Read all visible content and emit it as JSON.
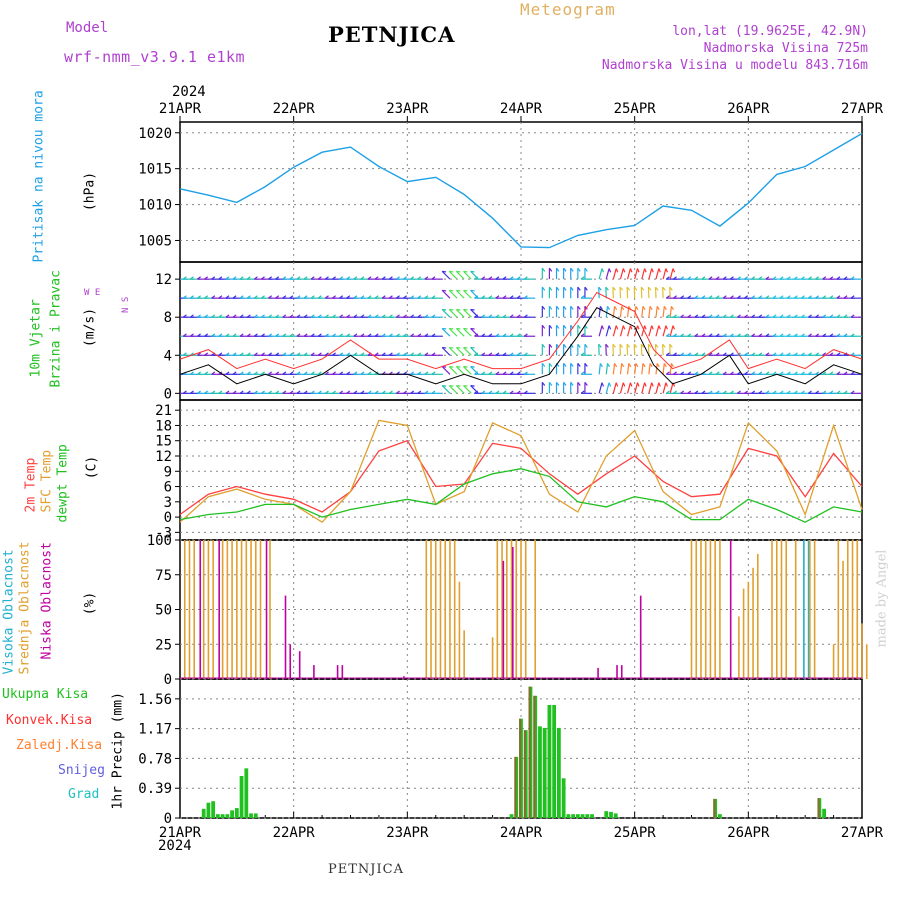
{
  "header": {
    "model_label": "Model",
    "model_name": "wrf-nmm_v3.9.1  e1km",
    "station": "PETNJICA",
    "subtitle": "Meteogram",
    "location": "lon,lat (19.9625E, 42.9N)",
    "elevation": "Nadmorska Visina 725m",
    "model_elevation": "Nadmorska Visina u modelu 843.716m"
  },
  "footer": {
    "station": "PETNJICA",
    "credit": "made by Angel"
  },
  "time_axis": {
    "year": "2024",
    "ticks": [
      "21APR",
      "22APR",
      "23APR",
      "24APR",
      "25APR",
      "26APR",
      "27APR"
    ]
  },
  "colors": {
    "pressure": "#1ea0e6",
    "temp2m": "#ff4040",
    "sfc": "#e0a030",
    "dew": "#20c020",
    "high_cloud": "#20b0d0",
    "mid_cloud": "#e0a030",
    "low_cloud": "#c000a0",
    "total_precip": "#20c020",
    "conv_precip": "#ff3030",
    "snow": "#6060e0",
    "frz": "#ff8030",
    "grad": "#20c0c0",
    "station": "#b040d0",
    "meta": "#b040d0",
    "subtitle": "#e0b060"
  },
  "panels": {
    "pressure": {
      "label": "Pritisak na nivou mora",
      "unit": "(hPa)",
      "ticks": [
        "1020",
        "1015",
        "1010",
        "1005"
      ]
    },
    "wind": {
      "label1": "10m Vjetar",
      "label2": "Brzina i Pravac",
      "unit": "(m/s)",
      "ticks": [
        "12",
        "8",
        "4",
        "0"
      ],
      "compass": "W   E",
      "compass_ns": "N S"
    },
    "temp": {
      "label1": "2m Temp",
      "label2": "SFC Temp",
      "label3": "dewpt Temp",
      "unit": "(C)",
      "ticks": [
        "21",
        "18",
        "15",
        "12",
        "9",
        "6",
        "3",
        "0",
        "-3"
      ]
    },
    "cloud": {
      "label1": "Visoka Oblacnost",
      "label2": "Srednja Oblacnost",
      "label3": "Niska Oblacnost",
      "unit": "(%)",
      "ticks": [
        "100",
        "75",
        "50",
        "25",
        "0"
      ]
    },
    "precip": {
      "labels": [
        "Ukupna Kisa",
        "Konvek.Kisa",
        "Zaledj.Kisa",
        "Snijeg",
        "Grad"
      ],
      "unit": "1hr Precip (mm)",
      "ticks": [
        "1.56",
        "1.17",
        "0.78",
        "0.39",
        "0"
      ]
    }
  },
  "chart_data": [
    {
      "type": "line",
      "x": [
        0,
        6,
        12,
        18,
        24,
        30,
        36,
        42,
        48,
        54,
        60,
        66,
        72,
        78,
        84,
        90,
        96,
        102,
        108,
        114,
        120,
        126,
        132,
        144
      ],
      "x_unit": "hours from 2024-04-21 00UTC",
      "series": [
        {
          "name": "Pritisak na nivou mora",
          "values": [
            1012.2,
            1011.3,
            1010.3,
            1012.5,
            1015.2,
            1017.3,
            1018.0,
            1015.3,
            1013.2,
            1013.8,
            1011.4,
            1008.1,
            1004.1,
            1004.0,
            1005.7,
            1006.5,
            1007.1,
            1009.8,
            1009.2,
            1007.0,
            1010.2,
            1014.2,
            1015.3,
            1019.9
          ]
        }
      ],
      "ylabel": "(hPa)",
      "ylim": [
        1002,
        1021.5
      ]
    },
    {
      "type": "line",
      "x": [
        0,
        6,
        12,
        18,
        24,
        30,
        36,
        42,
        48,
        54,
        60,
        66,
        72,
        78,
        84,
        90,
        96,
        102,
        108,
        114,
        120,
        126,
        132,
        138,
        144
      ],
      "x_unit": "hours from 2024-04-21 00UTC",
      "series": [
        {
          "name": "2m Temp",
          "values": [
            0.5,
            4.5,
            6.0,
            4.5,
            3.5,
            1.0,
            5.0,
            13.0,
            15.0,
            6.0,
            6.5,
            14.5,
            13.5,
            8.5,
            4.5,
            8.5,
            12.0,
            7.0,
            4.0,
            4.5,
            13.5,
            12.0,
            4.0,
            12.5,
            6.0
          ]
        },
        {
          "name": "SFC Temp",
          "values": [
            -1.0,
            4.0,
            5.5,
            3.5,
            2.5,
            -1.0,
            5.0,
            19.0,
            18.0,
            2.5,
            5.0,
            18.5,
            16.0,
            4.5,
            1.0,
            12.0,
            17.0,
            5.0,
            0.5,
            2.0,
            18.5,
            13.0,
            0.5,
            18.0,
            1.5
          ]
        },
        {
          "name": "dewpt Temp",
          "values": [
            -0.5,
            0.5,
            1.0,
            2.5,
            2.5,
            0.0,
            1.5,
            2.5,
            3.5,
            2.5,
            6.5,
            8.5,
            9.5,
            8.0,
            3.0,
            2.0,
            4.0,
            3.0,
            -0.5,
            -0.5,
            3.5,
            1.5,
            -1.0,
            2.0,
            1.0
          ]
        }
      ],
      "ylabel": "(C)",
      "ylim": [
        -4.5,
        23
      ]
    },
    {
      "type": "bar",
      "x_unit": "hours from 2024-04-21 00UTC",
      "series": [
        {
          "name": "Visoka Oblacnost",
          "x": [
            132,
            133
          ],
          "values": [
            100,
            100
          ]
        },
        {
          "name": "Srednja Oblacnost",
          "x": [
            1,
            2,
            3,
            5,
            6,
            7,
            9,
            10,
            11,
            12,
            13,
            14,
            15,
            16,
            17,
            19,
            52,
            53,
            54,
            55,
            56,
            57,
            58,
            59,
            60,
            66,
            67,
            68,
            69,
            70,
            71,
            72,
            73,
            75,
            108,
            109,
            110,
            111,
            112,
            113,
            114,
            118,
            119,
            120,
            121,
            122,
            125,
            126,
            127,
            128,
            130,
            133,
            134,
            138,
            139,
            140,
            141,
            142,
            143,
            144,
            145
          ],
          "values": [
            100,
            100,
            100,
            100,
            100,
            100,
            100,
            100,
            100,
            100,
            100,
            100,
            100,
            100,
            100,
            100,
            100,
            100,
            100,
            100,
            100,
            100,
            100,
            70,
            35,
            30,
            100,
            100,
            100,
            100,
            100,
            100,
            100,
            100,
            100,
            100,
            100,
            100,
            100,
            100,
            100,
            45,
            65,
            70,
            80,
            90,
            100,
            100,
            100,
            100,
            100,
            100,
            100,
            25,
            100,
            85,
            100,
            100,
            100,
            40,
            25
          ]
        },
        {
          "name": "Niska Oblacnost",
          "x": [
            4,
            8,
            18,
            22,
            23,
            25,
            28,
            33,
            34,
            47,
            68,
            70,
            88,
            92,
            93,
            97,
            116
          ],
          "values": [
            100,
            100,
            100,
            60,
            25,
            20,
            10,
            10,
            10,
            2,
            85,
            95,
            8,
            10,
            10,
            60,
            100
          ]
        }
      ],
      "ylabel": "(%)",
      "ylim": [
        0,
        100
      ]
    },
    {
      "type": "bar",
      "x_unit": "hours from 2024-04-21 00UTC",
      "series": [
        {
          "name": "Ukupna Kisa",
          "x": [
            5,
            6,
            7,
            8,
            9,
            10,
            11,
            12,
            13,
            14,
            15,
            16,
            70,
            71,
            72,
            73,
            74,
            75,
            76,
            77,
            78,
            79,
            80,
            81,
            82,
            83,
            84,
            85,
            86,
            87,
            90,
            91,
            92,
            113,
            114,
            135,
            136
          ],
          "values": [
            0.12,
            0.2,
            0.22,
            0.05,
            0.05,
            0.05,
            0.1,
            0.13,
            0.55,
            0.65,
            0.06,
            0.06,
            0.05,
            0.8,
            1.3,
            1.15,
            1.72,
            1.6,
            1.2,
            1.18,
            1.48,
            1.48,
            1.18,
            0.52,
            0.05,
            0.05,
            0.05,
            0.05,
            0.05,
            0.05,
            0.09,
            0.08,
            0.06,
            0.25,
            0.05,
            0.26,
            0.12
          ]
        },
        {
          "name": "Konvek.Kisa",
          "x": [
            71,
            72,
            73,
            74,
            75,
            113,
            135
          ],
          "values": [
            0.8,
            1.3,
            1.15,
            1.72,
            1.6,
            0.25,
            0.26
          ]
        }
      ],
      "ylabel": "1hr Precip (mm)",
      "ylim": [
        0,
        1.82
      ]
    }
  ]
}
